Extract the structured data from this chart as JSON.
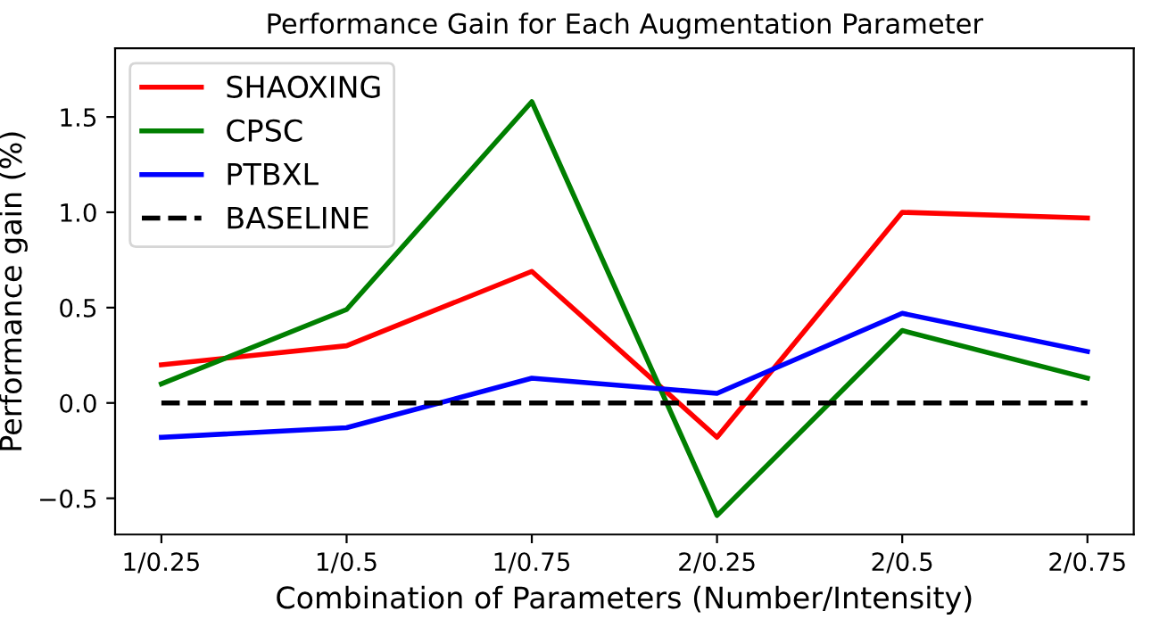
{
  "chart_data": {
    "type": "line",
    "title": "Performance Gain for Each Augmentation Parameter",
    "xlabel": "Combination of Parameters (Number/Intensity)",
    "ylabel": "Performance gain (%)",
    "categories": [
      "1/0.25",
      "1/0.5",
      "1/0.75",
      "2/0.25",
      "2/0.5",
      "2/0.75"
    ],
    "series": [
      {
        "name": "SHAOXING",
        "color": "#ff0000",
        "values": [
          0.2,
          0.3,
          0.69,
          -0.18,
          1.0,
          0.97
        ]
      },
      {
        "name": "CPSC",
        "color": "#007f00",
        "values": [
          0.1,
          0.49,
          1.58,
          -0.59,
          0.38,
          0.13
        ]
      },
      {
        "name": "PTBXL",
        "color": "#0000ff",
        "values": [
          -0.18,
          -0.13,
          0.13,
          0.05,
          0.47,
          0.27
        ]
      },
      {
        "name": "BASELINE",
        "color": "#000000",
        "line_style": "dashed",
        "values": [
          0,
          0,
          0,
          0,
          0,
          0
        ]
      }
    ],
    "ylim": [
      -0.69,
      1.86
    ],
    "yticks": [
      {
        "value": -0.5,
        "label": "−0.5"
      },
      {
        "value": 0,
        "label": "0.0"
      },
      0.5,
      {
        "value": 1,
        "label": "1.0"
      },
      1.5
    ],
    "grid": false,
    "legend": "top left",
    "marker": "none"
  }
}
